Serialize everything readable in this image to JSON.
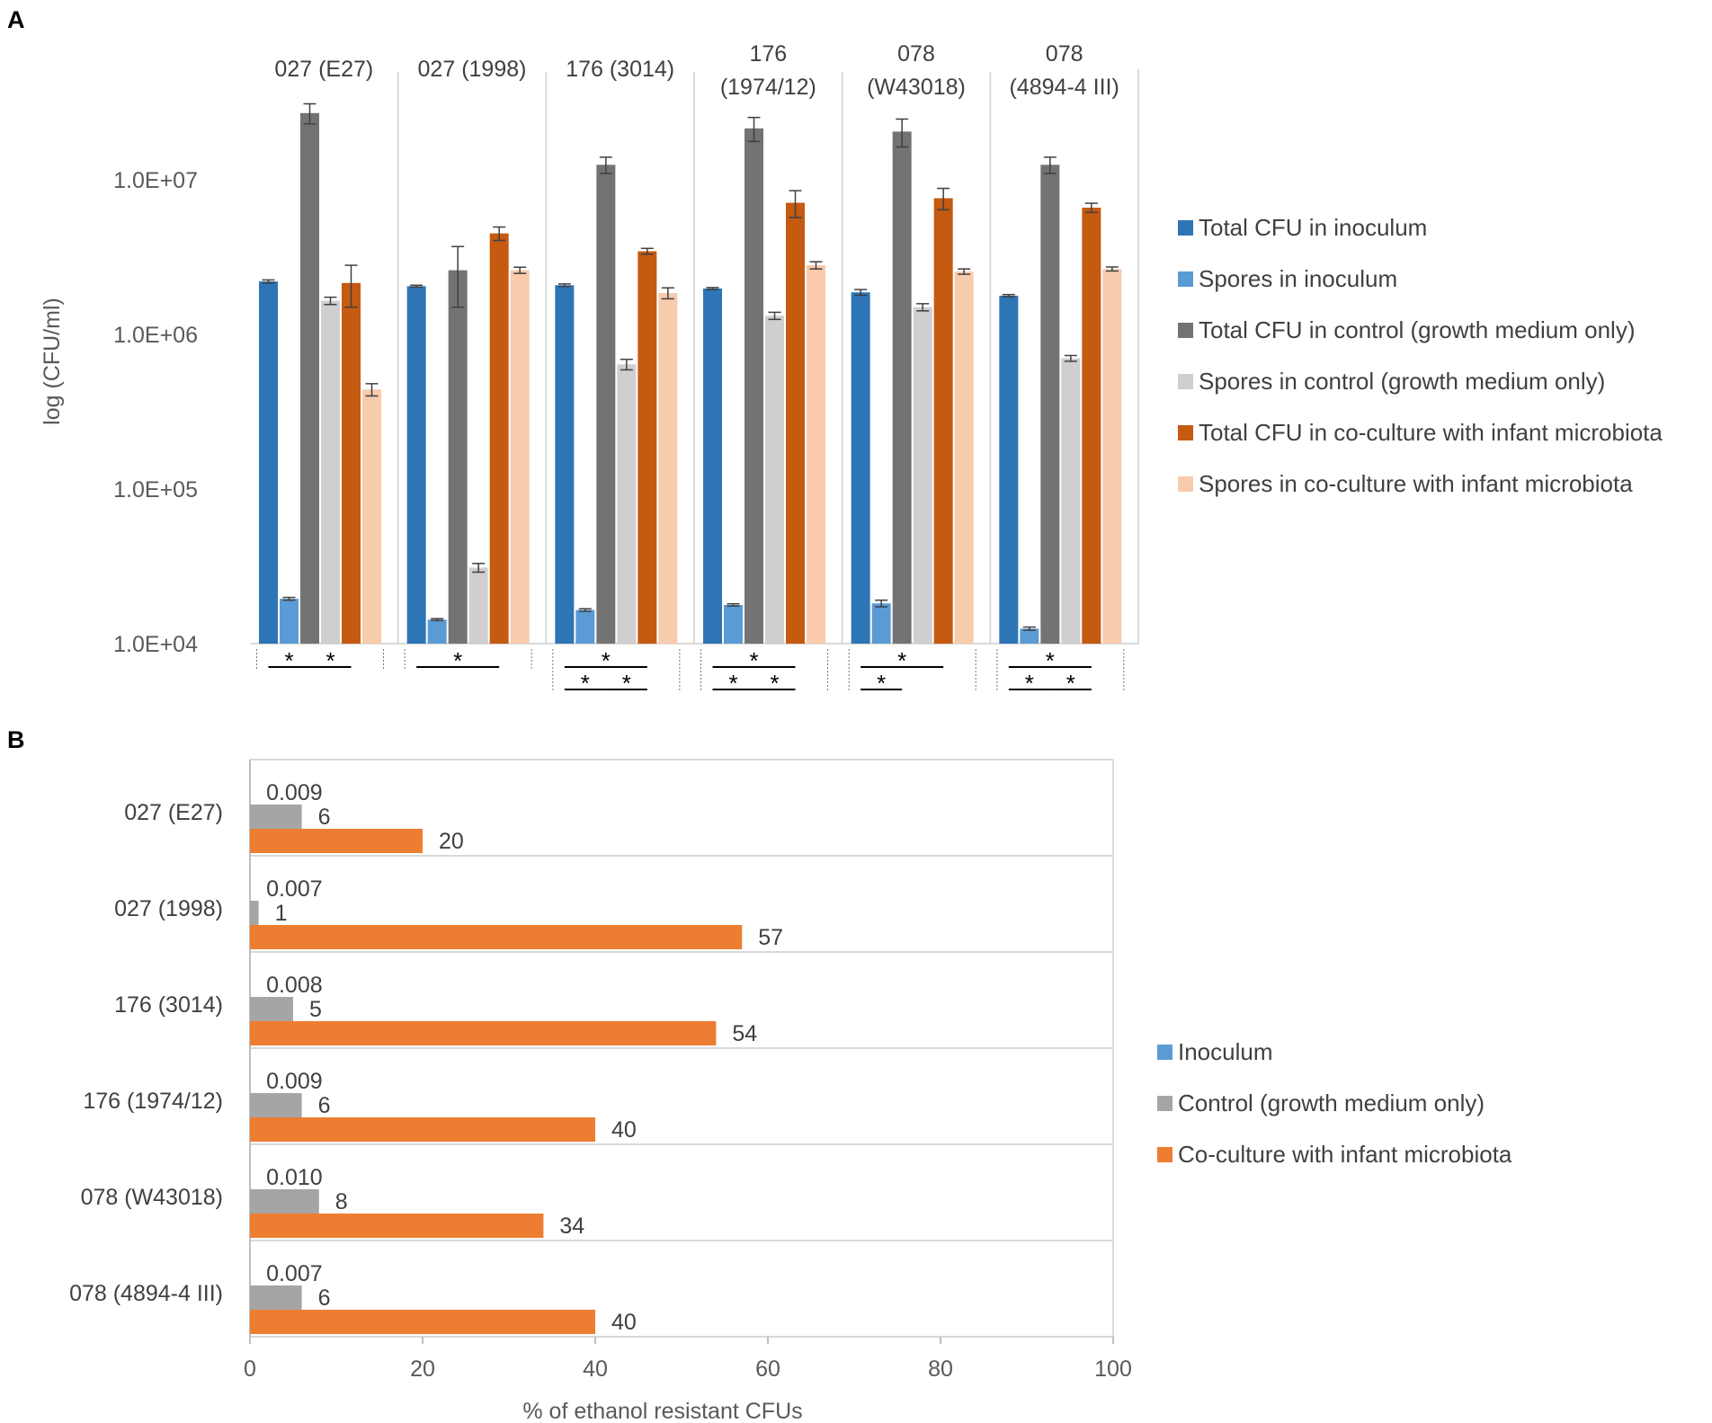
{
  "chart_data": [
    {
      "panel": "A",
      "type": "bar",
      "title": "",
      "ylabel": "log (CFU/ml)",
      "xlabel": "",
      "yscale": "log",
      "ylim": [
        10000,
        60000000
      ],
      "yticks": [
        {
          "value": 10000,
          "label": "1.0E+04"
        },
        {
          "value": 100000,
          "label": "1.0E+05"
        },
        {
          "value": 1000000,
          "label": "1.0E+06"
        },
        {
          "value": 10000000,
          "label": "1.0E+07"
        }
      ],
      "categories": [
        [
          "027 (E27)"
        ],
        [
          "027 (1998)"
        ],
        [
          "176 (3014)"
        ],
        [
          "176",
          "(1974/12)"
        ],
        [
          "078",
          "(W43018)"
        ],
        [
          "078",
          "(4894-4 III)"
        ]
      ],
      "series": [
        {
          "name": "Total CFU in inoculum",
          "color": "#2E75B6",
          "values": [
            2200000,
            2050000,
            2080000,
            1980000,
            1870000,
            1780000
          ],
          "errors": [
            50000,
            30000,
            40000,
            30000,
            80000,
            30000
          ]
        },
        {
          "name": "Spores in inoculum",
          "color": "#5B9BD5",
          "values": [
            19500,
            14300,
            16500,
            17800,
            18200,
            12500
          ],
          "errors": [
            400,
            200,
            300,
            300,
            900,
            300
          ]
        },
        {
          "name": "Total CFU in control (growth medium only)",
          "color": "#737373",
          "values": [
            27000000,
            2600000,
            12500000,
            21500000,
            20500000,
            12500000
          ],
          "errors": [
            4000000,
            1100000,
            1500000,
            3800000,
            4200000,
            1500000
          ]
        },
        {
          "name": "Spores in control (growth medium only)",
          "color": "#D0CECE",
          "values": [
            1650000,
            31000,
            640000,
            1320000,
            1500000,
            700000
          ],
          "errors": [
            90000,
            2000,
            50000,
            70000,
            80000,
            30000
          ]
        },
        {
          "name": "Total CFU in co-culture with infant microbiota",
          "color": "#C55A11",
          "values": [
            2150000,
            4500000,
            3450000,
            7100000,
            7600000,
            6600000
          ],
          "errors": [
            650000,
            450000,
            150000,
            1400000,
            1200000,
            450000
          ]
        },
        {
          "name": "Spores in co-culture with infant microbiota",
          "color": "#F8CBAD",
          "values": [
            440000,
            2600000,
            1850000,
            2800000,
            2550000,
            2650000
          ],
          "errors": [
            40000,
            120000,
            150000,
            150000,
            100000,
            80000
          ]
        }
      ],
      "significance": [
        {
          "category": 0,
          "marks": [
            {
              "from_series": 0,
              "to_series": 2,
              "row": 1,
              "label": "*"
            },
            {
              "from_series": 2,
              "to_series": 4,
              "row": 1,
              "label": "*"
            }
          ]
        },
        {
          "category": 1,
          "marks": [
            {
              "from_series": 0,
              "to_series": 4,
              "row": 1,
              "label": "*"
            }
          ]
        },
        {
          "category": 2,
          "marks": [
            {
              "from_series": 0,
              "to_series": 4,
              "row": 1,
              "label": "*"
            },
            {
              "from_series": 0,
              "to_series": 2,
              "row": 2,
              "label": "*"
            },
            {
              "from_series": 2,
              "to_series": 4,
              "row": 2,
              "label": "*"
            }
          ]
        },
        {
          "category": 3,
          "marks": [
            {
              "from_series": 0,
              "to_series": 4,
              "row": 1,
              "label": "*"
            },
            {
              "from_series": 0,
              "to_series": 2,
              "row": 2,
              "label": "*"
            },
            {
              "from_series": 2,
              "to_series": 4,
              "row": 2,
              "label": "*"
            }
          ]
        },
        {
          "category": 4,
          "marks": [
            {
              "from_series": 0,
              "to_series": 4,
              "row": 1,
              "label": "*"
            },
            {
              "from_series": 0,
              "to_series": 2,
              "row": 2,
              "label": "*"
            }
          ]
        },
        {
          "category": 5,
          "marks": [
            {
              "from_series": 0,
              "to_series": 4,
              "row": 1,
              "label": "*"
            },
            {
              "from_series": 0,
              "to_series": 2,
              "row": 2,
              "label": "*"
            },
            {
              "from_series": 2,
              "to_series": 4,
              "row": 2,
              "label": "*"
            }
          ]
        }
      ],
      "legend": "right"
    },
    {
      "panel": "B",
      "type": "bar",
      "orientation": "horizontal",
      "title": "",
      "xlabel": "% of ethanol resistant CFUs",
      "ylabel": "",
      "xlim": [
        0,
        100
      ],
      "xticks": [
        0,
        20,
        40,
        60,
        80,
        100
      ],
      "categories": [
        "027 (E27)",
        "027 (1998)",
        "176 (3014)",
        "176 (1974/12)",
        "078 (W43018)",
        "078 (4894-4 III)"
      ],
      "series": [
        {
          "name": "Inoculum",
          "color": "#5B9BD5",
          "values": [
            0.009,
            0.007,
            0.008,
            0.009,
            0.01,
            0.007
          ],
          "labels": [
            "0.009",
            "0.007",
            "0.008",
            "0.009",
            "0.010",
            "0.007"
          ]
        },
        {
          "name": "Control (growth medium only)",
          "color": "#A5A5A5",
          "values": [
            6,
            1,
            5,
            6,
            8,
            6
          ],
          "labels": [
            "6",
            "1",
            "5",
            "6",
            "8",
            "6"
          ]
        },
        {
          "name": "Co-culture with infant microbiota",
          "color": "#ED7D31",
          "values": [
            20,
            57,
            54,
            40,
            34,
            40
          ],
          "labels": [
            "20",
            "57",
            "54",
            "40",
            "34",
            "40"
          ]
        }
      ],
      "legend": "right"
    }
  ]
}
